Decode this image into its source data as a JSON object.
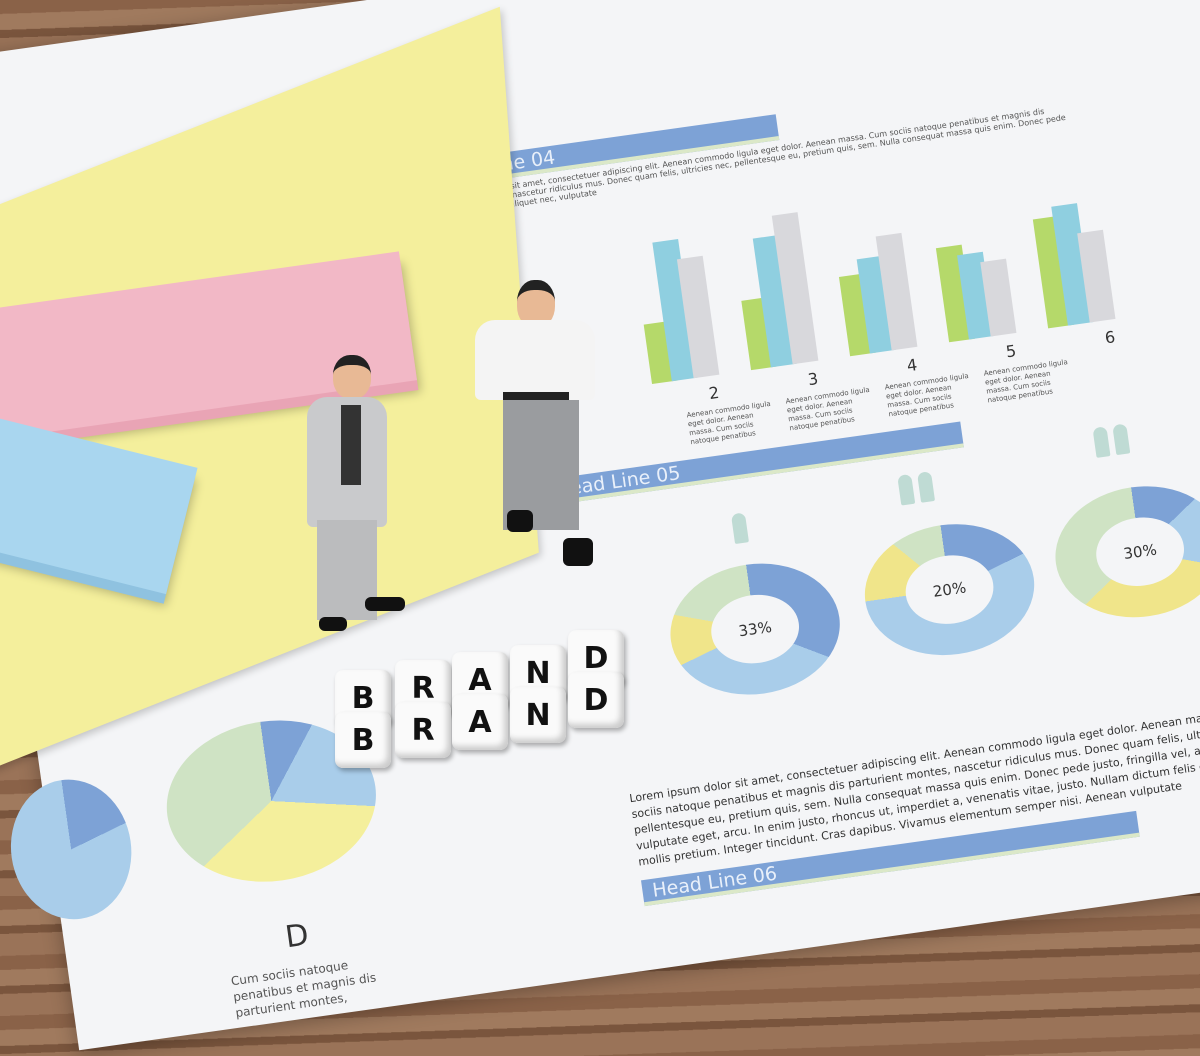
{
  "document": {
    "headlines": [
      "Head Line 04",
      "Head Line 05",
      "Head Line 06"
    ],
    "bar_labels": [
      "2",
      "3",
      "4",
      "5",
      "6"
    ],
    "bar_caption": "Aenean commodo ligula eget dolor. Aenean massa. Cum sociis natoque penatibus",
    "header_text": "Lorem ipsum dolor sit amet, consectetuer adipiscing elit. Aenean commodo ligula eget dolor. Aenean massa. Cum sociis natoque penatibus et magnis dis parturient montes, nascetur ridiculus mus. Donec quam felis, ultricies nec, pellentesque eu, pretium quis, sem. Nulla consequat massa quis enim. Donec pede justo, fringilla vel, aliquet nec, vulputate",
    "donut_labels": [
      "33%",
      "20%",
      "30%"
    ],
    "pie_label": "D",
    "pie_caption": "Cum sociis natoque penatibus et magnis dis parturient montes,",
    "paragraph": "Lorem ipsum dolor sit amet, consectetuer adipiscing elit. Aenean commodo ligula eget dolor. Aenean massa. Cum sociis natoque penatibus et magnis dis parturient montes, nascetur ridiculus mus. Donec quam felis, ultricies nec, pellentesque eu, pretium quis, sem. Nulla consequat massa quis enim. Donec pede justo, fringilla vel, aliquet nec, vulputate eget, arcu. In enim justo, rhoncus ut, imperdiet a, venenatis vitae, justo. Nullam dictum felis eu pede mollis pretium. Integer tincidunt. Cras dapibus. Vivamus elementum semper nisi. Aenean vulputate"
  },
  "blocks": {
    "top": [
      "B",
      "R",
      "A",
      "N",
      "D"
    ],
    "bottom": [
      "B",
      "R",
      "A",
      "N",
      "D"
    ]
  },
  "colors": {
    "blue": "#7da2d6",
    "teal": "#8fcfe0",
    "green": "#b5d96a",
    "grey": "#d8d8dc",
    "yellow": "#f4ef9c",
    "pink": "#f2b8c6",
    "sky": "#a9d6ef",
    "wood": "#8a6248"
  }
}
